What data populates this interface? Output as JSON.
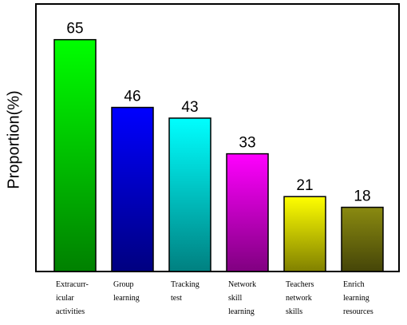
{
  "chart_data": {
    "type": "bar",
    "y_label": "Proportion(%)",
    "categories": [
      "Extracurr-\nicular\nactivities",
      "Group\nlearning",
      "Tracking\ntest",
      "Network\nskill\nlearning",
      "Teachers\nnetwork\nskills",
      "Enrich\nlearning\nresources"
    ],
    "values": [
      65,
      46,
      43,
      33,
      21,
      18
    ],
    "colors": [
      "#00ff00",
      "#0000ff",
      "#00ffff",
      "#ff00ff",
      "#ffff00",
      "#8a8a10"
    ],
    "ylim": [
      0,
      75
    ]
  }
}
